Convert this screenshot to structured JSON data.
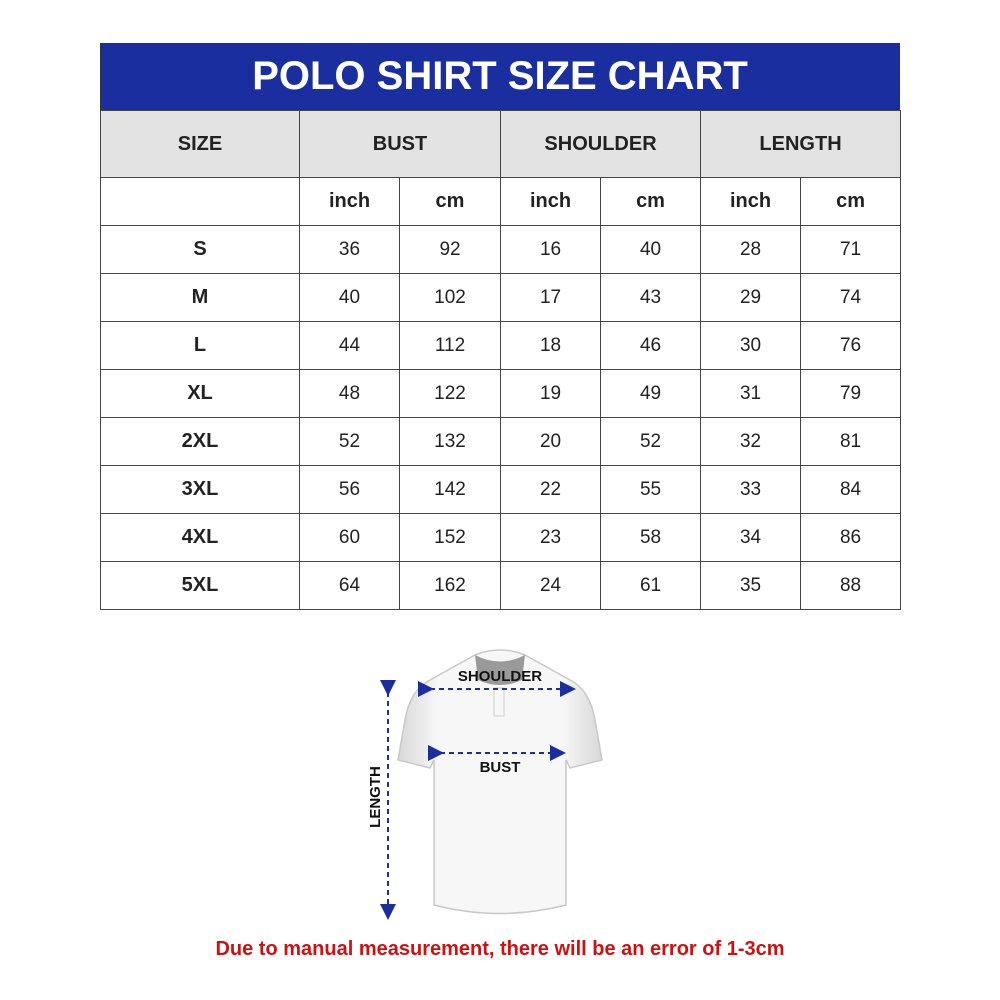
{
  "title": "POLO SHIRT SIZE CHART",
  "headers": [
    "SIZE",
    "BUST",
    "SHOULDER",
    "LENGTH"
  ],
  "units": [
    "inch",
    "cm",
    "inch",
    "cm",
    "inch",
    "cm"
  ],
  "rows": [
    {
      "size": "S",
      "values": [
        "36",
        "92",
        "16",
        "40",
        "28",
        "71"
      ]
    },
    {
      "size": "M",
      "values": [
        "40",
        "102",
        "17",
        "43",
        "29",
        "74"
      ]
    },
    {
      "size": "L",
      "values": [
        "44",
        "112",
        "18",
        "46",
        "30",
        "76"
      ]
    },
    {
      "size": "XL",
      "values": [
        "48",
        "122",
        "19",
        "49",
        "31",
        "79"
      ]
    },
    {
      "size": "2XL",
      "values": [
        "52",
        "132",
        "20",
        "52",
        "32",
        "81"
      ]
    },
    {
      "size": "3XL",
      "values": [
        "56",
        "142",
        "22",
        "55",
        "33",
        "84"
      ]
    },
    {
      "size": "4XL",
      "values": [
        "60",
        "152",
        "23",
        "58",
        "34",
        "86"
      ]
    },
    {
      "size": "5XL",
      "values": [
        "64",
        "162",
        "24",
        "61",
        "35",
        "88"
      ]
    }
  ],
  "diagram": {
    "shoulder": "SHOULDER",
    "bust": "BUST",
    "length": "LENGTH"
  },
  "note": "Due to manual measurement, there will be an error of 1-3cm",
  "colors": {
    "header_blue": "#1a2ea0",
    "header_gray": "#e3e3e3",
    "note_red": "#d01010",
    "arrow_blue": "#1a2ea0"
  }
}
